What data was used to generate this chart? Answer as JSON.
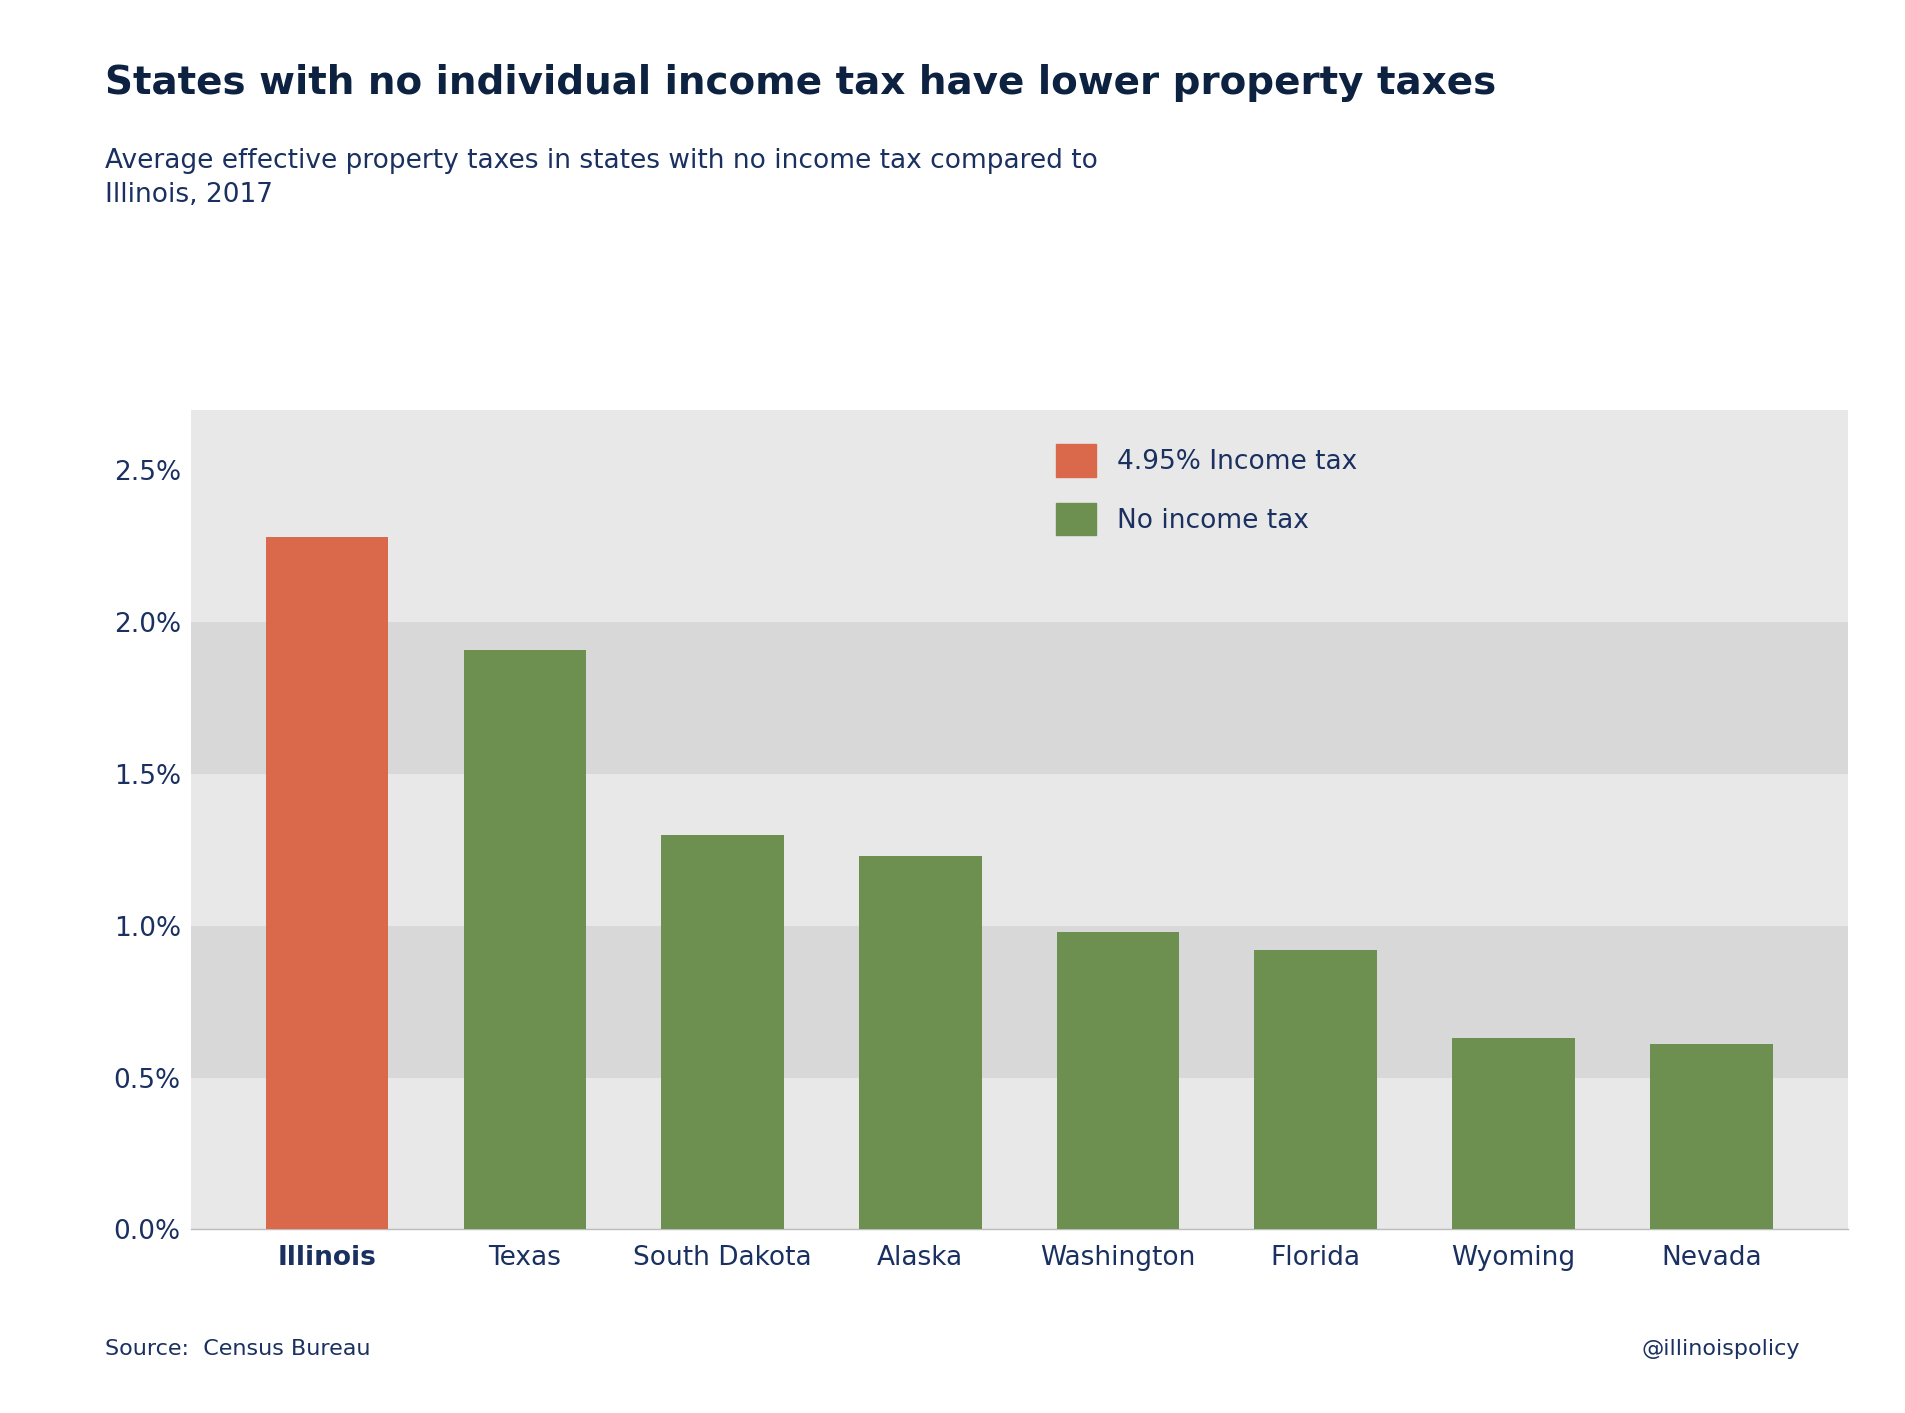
{
  "categories": [
    "Illinois",
    "Texas",
    "South Dakota",
    "Alaska",
    "Washington",
    "Florida",
    "Wyoming",
    "Nevada"
  ],
  "values": [
    0.0228,
    0.0191,
    0.013,
    0.0123,
    0.0098,
    0.0092,
    0.0063,
    0.0061
  ],
  "colors": [
    "#d9694a",
    "#6d8f50",
    "#6d8f50",
    "#6d8f50",
    "#6d8f50",
    "#6d8f50",
    "#6d8f50",
    "#6d8f50"
  ],
  "title": "States with no individual income tax have lower property taxes",
  "subtitle": "Average effective property taxes in states with no income tax compared to\nIllinois, 2017",
  "legend_items": [
    {
      "label": "4.95% Income tax",
      "color": "#d9694a"
    },
    {
      "label": "No income tax",
      "color": "#6d8f50"
    }
  ],
  "ylim": [
    0,
    0.027
  ],
  "yticks": [
    0.0,
    0.005,
    0.01,
    0.015,
    0.02,
    0.025
  ],
  "ytick_labels": [
    "0.0%",
    "0.5%",
    "1.0%",
    "1.5%",
    "2.0%",
    "2.5%"
  ],
  "band_colors": [
    "#e8e8e8",
    "#d8d8d8"
  ],
  "outer_bg_color": "#ffffff",
  "plot_bg_color": "#e8e8e8",
  "title_color": "#0d2240",
  "subtitle_color": "#1a3060",
  "axis_label_color": "#1a3060",
  "source_text": "Source:  Census Bureau",
  "watermark_text": "@illinoispolicy",
  "title_fontsize": 28,
  "subtitle_fontsize": 19,
  "tick_fontsize": 19,
  "legend_fontsize": 19,
  "source_fontsize": 16,
  "watermark_fontsize": 16
}
